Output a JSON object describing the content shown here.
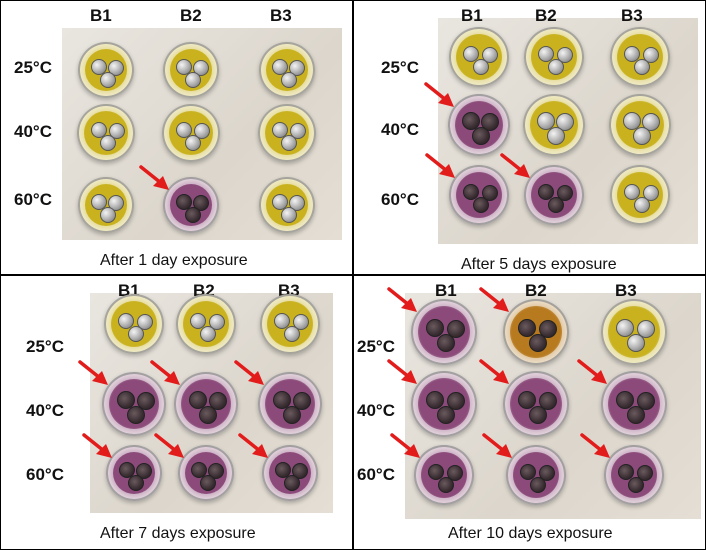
{
  "figure": {
    "columns": [
      "B1",
      "B2",
      "B3"
    ],
    "rows": [
      "25°C",
      "40°C",
      "60°C"
    ],
    "panels": [
      {
        "caption": "After 1 day exposure",
        "dishes": [
          [
            "yellow",
            "yellow",
            "yellow"
          ],
          [
            "yellow",
            "yellow",
            "yellow"
          ],
          [
            "yellow",
            "purple",
            "yellow"
          ]
        ],
        "arrows": [
          [
            false,
            false,
            false
          ],
          [
            false,
            false,
            false
          ],
          [
            false,
            true,
            false
          ]
        ]
      },
      {
        "caption": "After 5 days exposure",
        "dishes": [
          [
            "yellow",
            "yellow",
            "yellow"
          ],
          [
            "purple",
            "yellow",
            "yellow"
          ],
          [
            "purple",
            "purple",
            "yellow"
          ]
        ],
        "arrows": [
          [
            false,
            false,
            false
          ],
          [
            true,
            false,
            false
          ],
          [
            true,
            true,
            false
          ]
        ]
      },
      {
        "caption": "After 7 days exposure",
        "dishes": [
          [
            "yellow",
            "yellow",
            "yellow"
          ],
          [
            "purple",
            "purple",
            "purple"
          ],
          [
            "purple",
            "purple",
            "purple"
          ]
        ],
        "arrows": [
          [
            false,
            false,
            false
          ],
          [
            true,
            true,
            true
          ],
          [
            true,
            true,
            true
          ]
        ]
      },
      {
        "caption": "After 10 days exposure",
        "dishes": [
          [
            "purple",
            "orange",
            "yellow"
          ],
          [
            "purple",
            "purple",
            "purple"
          ],
          [
            "purple",
            "purple",
            "purple"
          ]
        ],
        "arrows": [
          [
            true,
            true,
            false
          ],
          [
            true,
            true,
            true
          ],
          [
            true,
            true,
            true
          ]
        ]
      }
    ],
    "colors": {
      "yellow": "#c9b21e",
      "purple": "#8b4a7a",
      "orange": "#b87a1f",
      "arrow": "#e21b1b"
    }
  }
}
